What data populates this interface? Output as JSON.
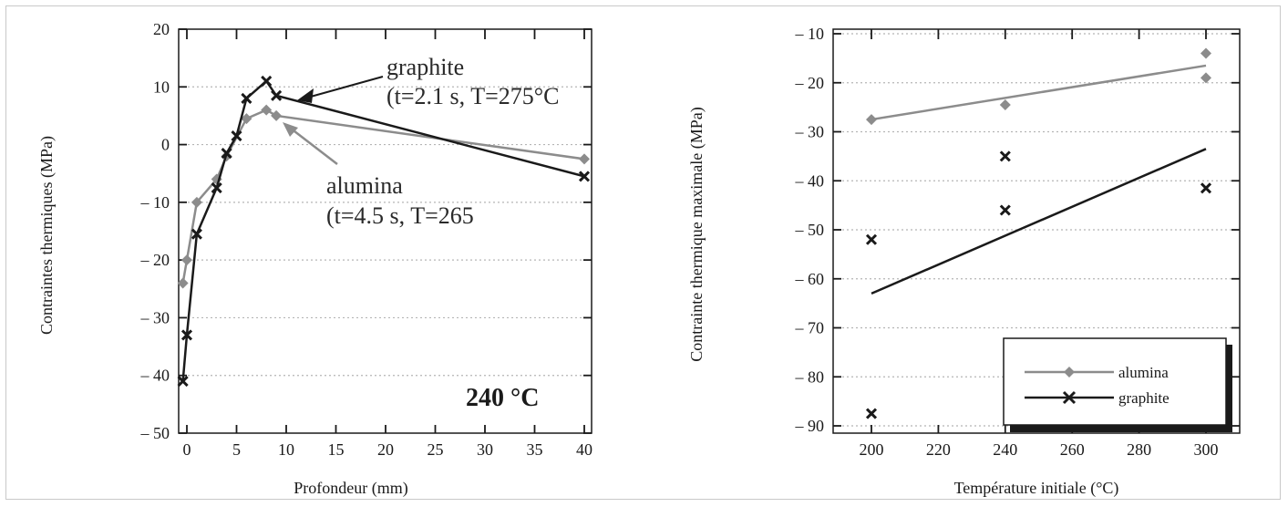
{
  "colors": {
    "alumina": "#8c8c8c",
    "graphite": "#1a1a1a",
    "grid": "#b5b5b5"
  },
  "chart_data": [
    {
      "type": "line",
      "xlabel": "Profondeur (mm)",
      "ylabel": "Contraintes thermiques (MPa)",
      "xlim": [
        0,
        40
      ],
      "ylim": [
        -50,
        20
      ],
      "xticks": [
        "0",
        "5",
        "10",
        "15",
        "20",
        "25",
        "30",
        "35",
        "40"
      ],
      "yticks": [
        "20",
        "10",
        "0",
        "– 10",
        "– 20",
        "– 30",
        "– 40",
        "– 50"
      ],
      "grid": "horizontal dotted",
      "series": [
        {
          "name": "alumina",
          "marker": "diamond",
          "x": [
            -0.4,
            0,
            1,
            3,
            4,
            6,
            8,
            9,
            40
          ],
          "y": [
            -24,
            -20,
            -10,
            -6,
            -2,
            4.5,
            6,
            5,
            -2.5
          ]
        },
        {
          "name": "graphite",
          "marker": "x",
          "x": [
            -0.4,
            0,
            1,
            3,
            4,
            5,
            6,
            8,
            9,
            40
          ],
          "y": [
            -41,
            -33,
            -15.5,
            -7.5,
            -1.5,
            1.5,
            8,
            11,
            8.5,
            -5.5
          ]
        }
      ],
      "annotations": [
        {
          "label": "graphite",
          "line2": "(t=2.1 s, T=275°C"
        },
        {
          "label": "alumina",
          "line2": "(t=4.5 s, T=265"
        },
        {
          "label": "240 °C"
        }
      ]
    },
    {
      "type": "scatter",
      "xlabel": "Température initiale (°C)",
      "ylabel": "Contrainte thermique maximale (MPa)",
      "xlim": [
        190,
        305
      ],
      "ylim": [
        -90,
        -10
      ],
      "xticks": [
        "200",
        "220",
        "240",
        "260",
        "280",
        "300"
      ],
      "yticks": [
        "– 10",
        "– 20",
        "– 30",
        "– 40",
        "– 50",
        "– 60",
        "– 70",
        "– 80",
        "– 90"
      ],
      "grid": "horizontal dotted",
      "series": [
        {
          "name": "alumina",
          "marker": "diamond",
          "x": [
            200,
            240,
            300,
            300
          ],
          "y": [
            -27.5,
            -24.5,
            -14,
            -19
          ],
          "fit": {
            "x": [
              200,
              300
            ],
            "y": [
              -27.5,
              -16.5
            ]
          }
        },
        {
          "name": "graphite",
          "marker": "x",
          "x": [
            200,
            200,
            240,
            240,
            300
          ],
          "y": [
            -52,
            -87.5,
            -35,
            -46,
            -41.5
          ],
          "fit": {
            "x": [
              200,
              300
            ],
            "y": [
              -63,
              -33.5
            ]
          }
        }
      ],
      "legend": {
        "position": "bottom-right",
        "entries": [
          "alumina",
          "graphite"
        ]
      }
    }
  ]
}
